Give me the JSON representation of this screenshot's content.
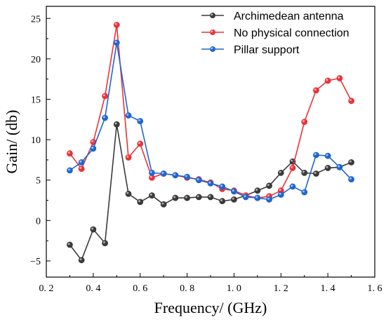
{
  "chart_data": {
    "type": "line",
    "xlabel": "Frequency/ (GHz)",
    "ylabel": "Gain/ (db)",
    "xlim": [
      0.2,
      1.6
    ],
    "ylim": [
      -7,
      26.5
    ],
    "xticks": [
      0.2,
      0.4,
      0.6,
      0.8,
      1.0,
      1.2,
      1.4,
      1.6
    ],
    "xtick_labels": [
      "0. 2",
      "0. 4",
      "0. 6",
      "0. 8",
      "1. 0",
      "1. 2",
      "1. 4",
      "1. 6"
    ],
    "yticks": [
      -5,
      0,
      5,
      10,
      15,
      20,
      25
    ],
    "ytick_labels": [
      "−5",
      "0",
      "5",
      "10",
      "15",
      "20",
      "25"
    ],
    "grid": false,
    "legend_position": "top-right",
    "x": [
      0.3,
      0.35,
      0.4,
      0.45,
      0.5,
      0.55,
      0.6,
      0.65,
      0.7,
      0.75,
      0.8,
      0.85,
      0.9,
      0.95,
      1.0,
      1.05,
      1.1,
      1.15,
      1.2,
      1.25,
      1.3,
      1.35,
      1.4,
      1.45,
      1.5
    ],
    "series": [
      {
        "name": "Archimedean antenna",
        "color": "#3a3a3a",
        "values": [
          -3.0,
          -4.9,
          -1.1,
          -2.8,
          11.9,
          3.3,
          2.3,
          3.1,
          2.0,
          2.8,
          2.8,
          2.9,
          2.9,
          2.4,
          2.6,
          3.1,
          3.7,
          4.3,
          5.9,
          7.3,
          5.9,
          5.8,
          6.5,
          6.6,
          7.2
        ]
      },
      {
        "name": "No physical connection",
        "color": "#e8333a",
        "values": [
          8.3,
          6.4,
          9.7,
          15.4,
          24.2,
          7.8,
          9.5,
          5.3,
          5.8,
          5.6,
          5.3,
          5.1,
          4.7,
          3.9,
          3.7,
          3.1,
          2.8,
          3.0,
          3.7,
          6.5,
          12.2,
          16.1,
          17.3,
          17.6,
          14.8
        ]
      },
      {
        "name": "Pillar support",
        "color": "#1f66d1",
        "values": [
          6.2,
          7.2,
          8.9,
          12.7,
          22.0,
          13.0,
          12.3,
          5.9,
          5.8,
          5.6,
          5.4,
          5.0,
          4.6,
          4.2,
          3.6,
          2.9,
          2.8,
          2.6,
          3.2,
          4.2,
          3.5,
          8.1,
          8.0,
          6.6,
          5.1
        ]
      }
    ]
  }
}
